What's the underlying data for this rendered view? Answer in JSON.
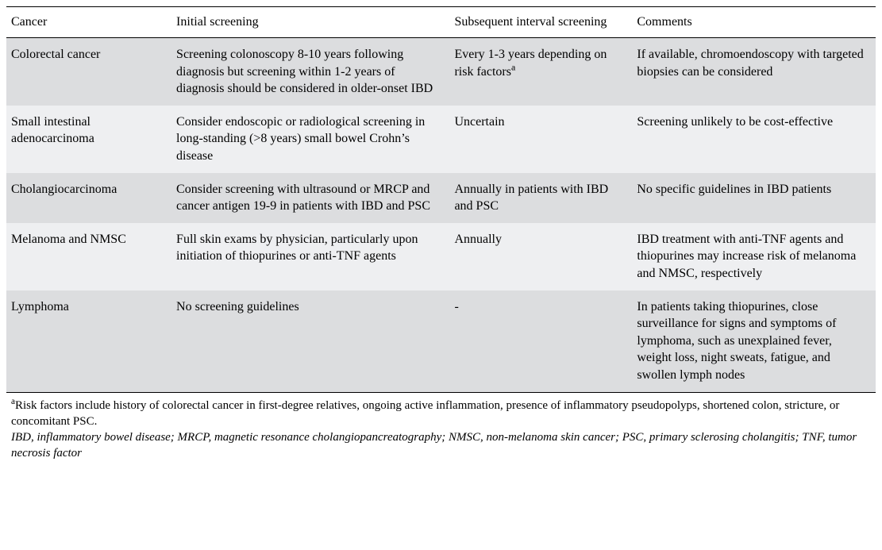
{
  "table": {
    "columns": [
      {
        "label": "Cancer",
        "width": "19%"
      },
      {
        "label": "Initial screening",
        "width": "32%"
      },
      {
        "label": "Subsequent interval screening",
        "width": "21%"
      },
      {
        "label": "Comments",
        "width": "28%"
      }
    ],
    "row_shades": [
      "#dcdddf",
      "#eeeff1"
    ],
    "border_color": "#000000",
    "font_family": "Times New Roman",
    "header_fontsize": 16,
    "body_fontsize": 16,
    "footnote_fontsize": 15,
    "rows": [
      {
        "cancer": "Colorectal cancer",
        "initial": "Screening colonoscopy 8-10 years following diagnosis but screening within 1-2 years of diagnosis should be considered in older-onset IBD",
        "subsequent_pre": "Every 1-3 years depending on risk factors",
        "subsequent_sup": "a",
        "subsequent_post": "",
        "comments": "If available, chromoendoscopy with targeted biopsies can be considered"
      },
      {
        "cancer": "Small intestinal adenocarcinoma",
        "initial": "Consider endoscopic or radiological screening in long-standing (>8 years) small bowel Crohn’s disease",
        "subsequent_pre": "Uncertain",
        "subsequent_sup": "",
        "subsequent_post": "",
        "comments": "Screening unlikely to be cost-effective"
      },
      {
        "cancer": "Cholangiocarcinoma",
        "initial": "Consider screening with ultrasound or MRCP and cancer antigen 19-9 in patients with IBD and PSC",
        "subsequent_pre": "Annually in patients with IBD and PSC",
        "subsequent_sup": "",
        "subsequent_post": "",
        "comments": "No specific guidelines in IBD patients"
      },
      {
        "cancer": "Melanoma and NMSC",
        "initial": "Full skin exams by physician, particularly upon initiation of thiopurines or anti-TNF agents",
        "subsequent_pre": "Annually",
        "subsequent_sup": "",
        "subsequent_post": "",
        "comments": "IBD treatment with anti-TNF agents and thiopurines may increase risk of melanoma and NMSC, respectively"
      },
      {
        "cancer": "Lymphoma",
        "initial": "No screening guidelines",
        "subsequent_pre": "-",
        "subsequent_sup": "",
        "subsequent_post": "",
        "comments": "In patients taking thiopurines, close surveillance for signs and symptoms of lymphoma, such as unexplained fever, weight loss, night sweats, fatigue, and swollen lymph nodes"
      }
    ],
    "footnote_sup": "a",
    "footnote_text": "Risk factors include history of colorectal cancer in first-degree relatives, ongoing active inflammation, presence of inflammatory pseudopolyps, shortened colon, stricture, or concomitant PSC.",
    "abbreviations": "IBD, inflammatory bowel disease; MRCP, magnetic resonance cholangiopancreatography; NMSC, non-melanoma skin cancer; PSC, primary sclerosing cholangitis; TNF, tumor necrosis factor"
  }
}
